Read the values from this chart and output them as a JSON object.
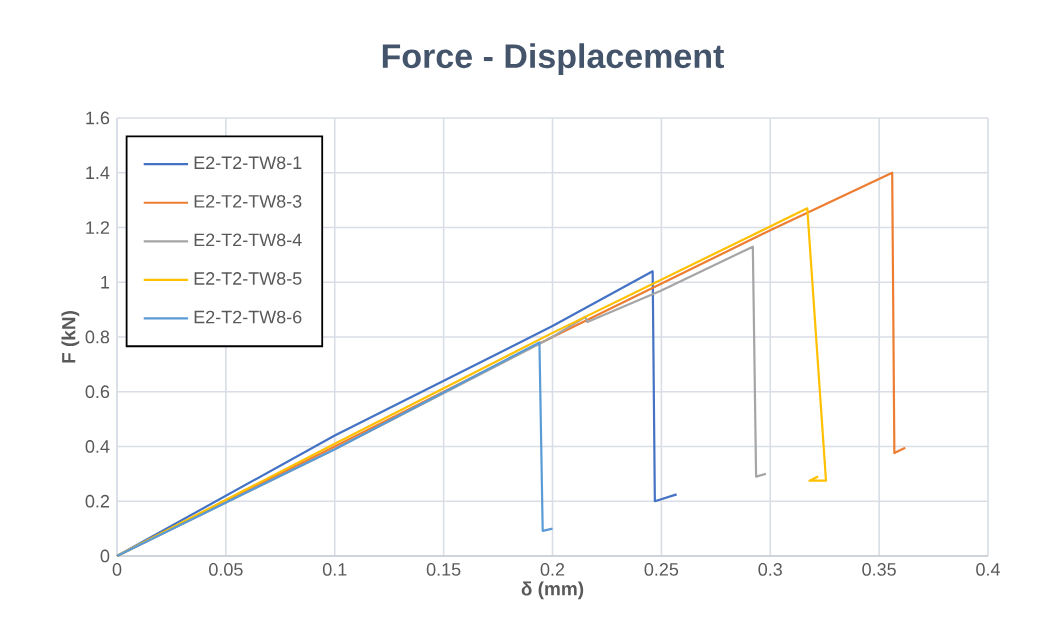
{
  "chart_data": {
    "type": "line",
    "title": "Force - Displacement",
    "xlabel": "δ (mm)",
    "ylabel": "F (kN)",
    "xlim": [
      0,
      0.4
    ],
    "xticks": [
      0,
      0.05,
      0.1,
      0.15,
      0.2,
      0.25,
      0.3,
      0.35,
      0.4
    ],
    "ylim": [
      0,
      1.6
    ],
    "yticks": [
      0,
      0.2,
      0.4,
      0.6,
      0.8,
      1,
      1.2,
      1.4,
      1.6
    ],
    "grid": true,
    "legend": "top left",
    "line_style": "solid",
    "series": [
      {
        "name": "E2-T2-TW8-1",
        "color": "#4472c4",
        "x": [
          0,
          0.05,
          0.1,
          0.15,
          0.2,
          0.246,
          0.247,
          0.257
        ],
        "values": [
          0,
          0.22,
          0.44,
          0.64,
          0.84,
          1.04,
          0.2,
          0.225
        ]
      },
      {
        "name": "E2-T2-TW8-3",
        "color": "#ed7d31",
        "x": [
          0,
          0.1,
          0.2,
          0.3,
          0.356,
          0.357,
          0.362
        ],
        "values": [
          0,
          0.4,
          0.8,
          1.19,
          1.4,
          0.376,
          0.395
        ]
      },
      {
        "name": "E2-T2-TW8-4",
        "color": "#a5a5a5",
        "x": [
          0,
          0.1,
          0.2,
          0.215,
          0.216,
          0.25,
          0.292,
          0.2935,
          0.298
        ],
        "values": [
          0,
          0.39,
          0.8,
          0.873,
          0.855,
          0.97,
          1.13,
          0.29,
          0.3
        ]
      },
      {
        "name": "E2-T2-TW8-5",
        "color": "#ffc000",
        "x": [
          0,
          0.1,
          0.2,
          0.317,
          0.3256,
          0.318,
          0.322
        ],
        "values": [
          0,
          0.41,
          0.815,
          1.27,
          0.275,
          0.275,
          0.29
        ]
      },
      {
        "name": "E2-T2-TW8-6",
        "color": "#5b9bd5",
        "x": [
          0,
          0.1,
          0.194,
          0.1955,
          0.2
        ],
        "values": [
          0,
          0.39,
          0.78,
          0.092,
          0.1
        ]
      }
    ]
  }
}
